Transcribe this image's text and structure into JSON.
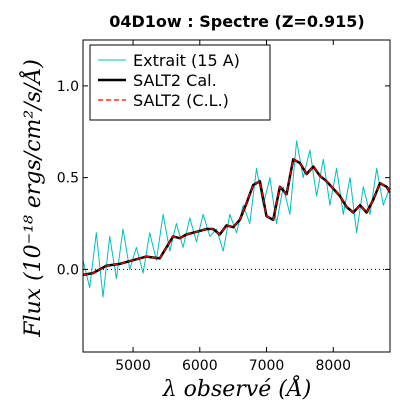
{
  "chart_data": {
    "type": "line",
    "title": "04D1ow : Spectre (Z=0.915)",
    "xlabel": "λ observé (Å)",
    "ylabel": "Flux (10⁻¹⁸ ergs/cm²/s/Å)",
    "xlim": [
      4250,
      8850
    ],
    "ylim": [
      -0.45,
      1.25
    ],
    "xticks": [
      5000,
      6000,
      7000,
      8000
    ],
    "xtick_labels": [
      "5000",
      "6000",
      "7000",
      "8000"
    ],
    "yticks": [
      0.0,
      0.5,
      1.0
    ],
    "ytick_labels": [
      "0.0",
      "0.5",
      "1.0"
    ],
    "zero_line": {
      "y": 0.0,
      "style": "dotted"
    },
    "grid": false,
    "legend_position": "upper-left",
    "series": [
      {
        "name": "Extrait (15 A)",
        "color": "#00bfbf",
        "style": "solid",
        "x": [
          4250,
          4350,
          4450,
          4550,
          4650,
          4750,
          4850,
          4950,
          5050,
          5150,
          5250,
          5350,
          5450,
          5550,
          5650,
          5750,
          5850,
          5950,
          6050,
          6150,
          6250,
          6350,
          6450,
          6550,
          6650,
          6750,
          6850,
          6950,
          7050,
          7150,
          7250,
          7350,
          7450,
          7550,
          7650,
          7750,
          7850,
          7950,
          8050,
          8150,
          8250,
          8350,
          8450,
          8550,
          8650,
          8750,
          8850
        ],
        "y": [
          0.05,
          -0.1,
          0.2,
          -0.15,
          0.18,
          -0.05,
          0.22,
          0.0,
          0.12,
          -0.02,
          0.2,
          0.05,
          0.3,
          0.1,
          0.25,
          0.12,
          0.28,
          0.15,
          0.3,
          0.18,
          0.22,
          0.1,
          0.3,
          0.2,
          0.35,
          0.25,
          0.55,
          0.35,
          0.5,
          0.25,
          0.45,
          0.3,
          0.7,
          0.5,
          0.65,
          0.4,
          0.6,
          0.35,
          0.55,
          0.3,
          0.5,
          0.2,
          0.45,
          0.3,
          0.55,
          0.35,
          0.45
        ]
      },
      {
        "name": "SALT2 Cal.",
        "color": "#000000",
        "style": "solid",
        "x": [
          4250,
          4400,
          4600,
          4800,
          5000,
          5200,
          5400,
          5500,
          5600,
          5700,
          5800,
          5900,
          6000,
          6100,
          6200,
          6300,
          6400,
          6500,
          6600,
          6700,
          6800,
          6900,
          7000,
          7100,
          7200,
          7300,
          7400,
          7500,
          7600,
          7700,
          7800,
          7900,
          8000,
          8100,
          8200,
          8300,
          8400,
          8500,
          8600,
          8700,
          8800,
          8850
        ],
        "y": [
          -0.03,
          -0.02,
          0.02,
          0.03,
          0.05,
          0.07,
          0.06,
          0.12,
          0.18,
          0.17,
          0.19,
          0.2,
          0.21,
          0.22,
          0.22,
          0.19,
          0.24,
          0.23,
          0.27,
          0.36,
          0.46,
          0.48,
          0.29,
          0.27,
          0.45,
          0.41,
          0.6,
          0.58,
          0.52,
          0.56,
          0.51,
          0.48,
          0.44,
          0.4,
          0.34,
          0.31,
          0.35,
          0.31,
          0.38,
          0.47,
          0.45,
          0.42
        ]
      },
      {
        "name": "SALT2 (C.L.)",
        "color": "#ff0000",
        "style": "dashed",
        "x": [
          4250,
          4400,
          4600,
          4800,
          5000,
          5200,
          5400,
          5500,
          5600,
          5700,
          5800,
          5900,
          6000,
          6100,
          6200,
          6300,
          6400,
          6500,
          6600,
          6700,
          6800,
          6900,
          7000,
          7100,
          7200,
          7300,
          7400,
          7500,
          7600,
          7700,
          7800,
          7900,
          8000,
          8100,
          8200,
          8300,
          8400,
          8500,
          8600,
          8700,
          8800,
          8850
        ],
        "y": [
          -0.03,
          -0.02,
          0.02,
          0.03,
          0.05,
          0.07,
          0.06,
          0.12,
          0.18,
          0.17,
          0.19,
          0.2,
          0.21,
          0.22,
          0.22,
          0.19,
          0.24,
          0.23,
          0.27,
          0.36,
          0.46,
          0.48,
          0.29,
          0.27,
          0.45,
          0.41,
          0.6,
          0.58,
          0.52,
          0.56,
          0.51,
          0.48,
          0.44,
          0.4,
          0.34,
          0.31,
          0.35,
          0.31,
          0.38,
          0.47,
          0.45,
          0.42
        ]
      }
    ]
  }
}
